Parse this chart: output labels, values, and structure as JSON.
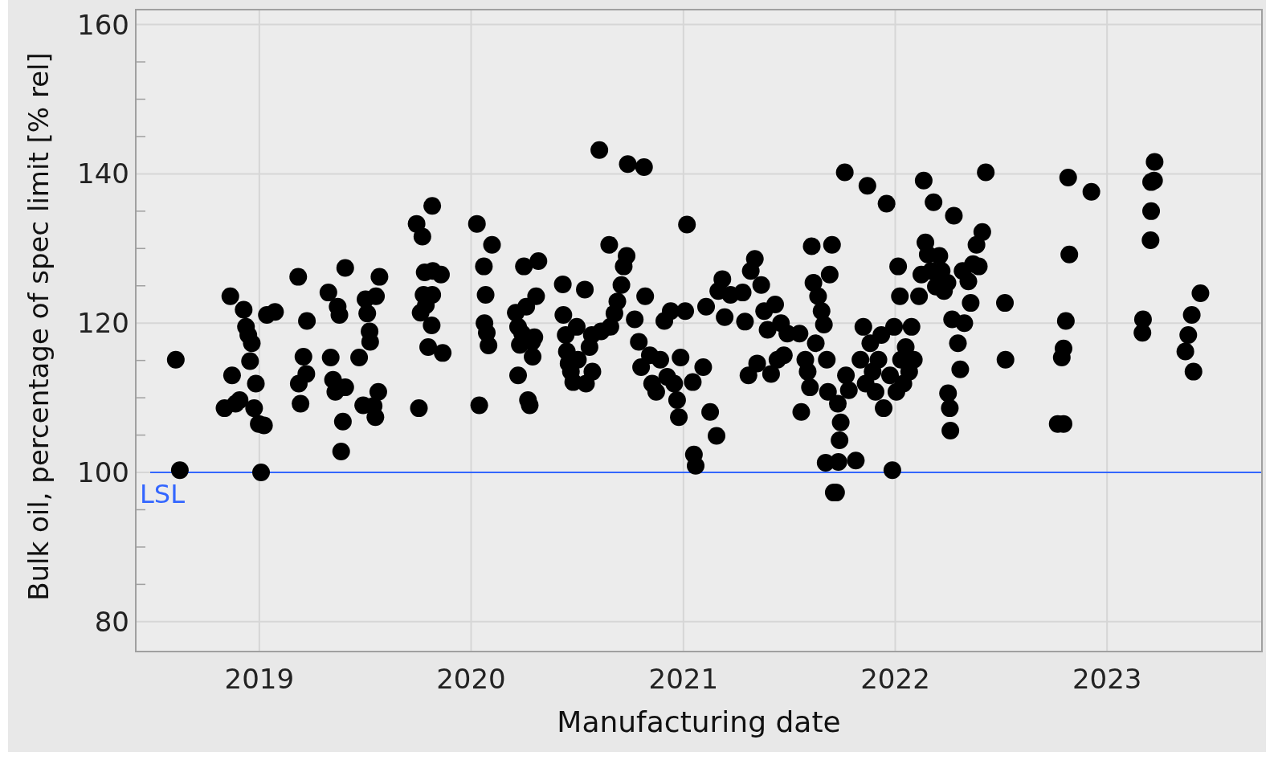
{
  "chart_data": {
    "type": "scatter",
    "xlabel": "Manufacturing date",
    "ylabel": "Bulk oil, percentage of spec limit [% rel]",
    "xlim": [
      "2018-06-02",
      "2023-09-25"
    ],
    "xticks": [
      "2019",
      "2020",
      "2021",
      "2022",
      "2023"
    ],
    "ylim": [
      76,
      162
    ],
    "yticks": [
      80,
      {
        "value": 85,
        "label": null
      },
      {
        "value": 90,
        "label": null
      },
      {
        "value": 95,
        "label": null
      },
      100,
      {
        "value": 105,
        "label": null
      },
      {
        "value": 110,
        "label": null
      },
      {
        "value": 115,
        "label": null
      },
      120,
      {
        "value": 125,
        "label": null
      },
      {
        "value": 130,
        "label": null
      },
      {
        "value": 135,
        "label": null
      },
      140,
      {
        "value": 145,
        "label": null
      },
      {
        "value": 150,
        "label": null
      },
      {
        "value": 155,
        "label": null
      },
      160
    ],
    "grid": true,
    "marker": "circle",
    "ref_lines": [
      {
        "axis": "y",
        "value": 100,
        "label": "LSL",
        "color": "#3366ff"
      }
    ],
    "series": [
      {
        "color": "#000000",
        "x": [
          "2018-08-10",
          "2018-08-17",
          "2018-11-02",
          "2018-11-12",
          "2018-11-15",
          "2018-11-21",
          "2018-11-28",
          "2018-12-05",
          "2018-12-09",
          "2018-12-13",
          "2018-12-19",
          "2018-12-16",
          "2018-12-26",
          "2018-12-23",
          "2018-12-31",
          "2019-01-09",
          "2019-01-04",
          "2019-01-14",
          "2019-01-28",
          "2019-03-09",
          "2019-03-10",
          "2019-03-13",
          "2019-03-18",
          "2019-03-23",
          "2019-03-24",
          "2019-04-30",
          "2019-05-04",
          "2019-05-08",
          "2019-05-12",
          "2019-05-16",
          "2019-05-19",
          "2019-05-22",
          "2019-05-25",
          "2019-05-29",
          "2019-05-29",
          "2019-06-22",
          "2019-06-29",
          "2019-07-03",
          "2019-07-06",
          "2019-07-10",
          "2019-07-11",
          "2019-07-17",
          "2019-07-20",
          "2019-07-21",
          "2019-07-25",
          "2019-07-27",
          "2019-09-29",
          "2019-10-03",
          "2019-10-06",
          "2019-10-09",
          "2019-10-11",
          "2019-10-13",
          "2019-10-15",
          "2019-10-19",
          "2019-10-25",
          "2019-10-26",
          "2019-10-27",
          "2019-10-26",
          "2019-11-10",
          "2019-11-13",
          "2020-01-11",
          "2020-01-15",
          "2020-01-23",
          "2020-01-26",
          "2020-01-24",
          "2020-01-28",
          "2020-01-31",
          "2020-02-06",
          "2020-03-18",
          "2020-03-22",
          "2020-03-25",
          "2020-03-22",
          "2020-03-29",
          "2020-04-01",
          "2020-04-05",
          "2020-04-08",
          "2020-04-11",
          "2020-04-15",
          "2020-04-16",
          "2020-04-19",
          "2020-04-22",
          "2020-04-26",
          "2020-06-07",
          "2020-06-08",
          "2020-06-12",
          "2020-06-14",
          "2020-06-17",
          "2020-06-21",
          "2020-06-25",
          "2020-07-01",
          "2020-07-03",
          "2020-07-15",
          "2020-07-17",
          "2020-07-23",
          "2020-07-27",
          "2020-07-28",
          "2020-08-09",
          "2020-08-12",
          "2020-08-26",
          "2020-08-28",
          "2020-09-04",
          "2020-09-09",
          "2020-09-16",
          "2020-09-20",
          "2020-09-25",
          "2020-09-27",
          "2020-10-09",
          "2020-10-16",
          "2020-10-20",
          "2020-10-25",
          "2020-10-27",
          "2020-11-04",
          "2020-11-08",
          "2020-11-15",
          "2020-11-22",
          "2020-11-29",
          "2020-12-04",
          "2020-12-10",
          "2020-12-16",
          "2020-12-21",
          "2020-12-24",
          "2020-12-27",
          "2021-01-04",
          "2021-01-07",
          "2021-01-17",
          "2021-01-19",
          "2021-01-22",
          "2021-02-04",
          "2021-02-09",
          "2021-02-16",
          "2021-02-27",
          "2021-03-02",
          "2021-03-09",
          "2021-03-13",
          "2021-03-23",
          "2021-04-13",
          "2021-04-17",
          "2021-04-23",
          "2021-04-27",
          "2021-05-04",
          "2021-05-08",
          "2021-05-15",
          "2021-05-20",
          "2021-05-26",
          "2021-06-01",
          "2021-06-08",
          "2021-06-12",
          "2021-06-18",
          "2021-06-23",
          "2021-06-29",
          "2021-07-20",
          "2021-07-23",
          "2021-07-30",
          "2021-08-03",
          "2021-08-07",
          "2021-08-10",
          "2021-08-13",
          "2021-08-17",
          "2021-08-21",
          "2021-08-27",
          "2021-08-31",
          "2021-09-03",
          "2021-09-05",
          "2021-09-07",
          "2021-09-10",
          "2021-09-14",
          "2021-09-17",
          "2021-09-21",
          "2021-09-24",
          "2021-09-27",
          "2021-09-25",
          "2021-09-29",
          "2021-10-06",
          "2021-10-08",
          "2021-10-13",
          "2021-10-25",
          "2021-11-02",
          "2021-11-07",
          "2021-11-11",
          "2021-11-14",
          "2021-11-19",
          "2021-11-23",
          "2021-11-28",
          "2021-12-03",
          "2021-12-08",
          "2021-12-12",
          "2021-12-17",
          "2021-12-23",
          "2021-12-27",
          "2021-12-30",
          "2022-01-03",
          "2022-01-06",
          "2022-01-09",
          "2022-01-11",
          "2022-01-15",
          "2022-01-19",
          "2022-01-25",
          "2022-01-29",
          "2022-02-02",
          "2022-02-11",
          "2022-02-15",
          "2022-02-19",
          "2022-02-22",
          "2022-02-26",
          "2022-03-04",
          "2022-03-08",
          "2022-03-12",
          "2022-03-18",
          "2022-03-22",
          "2022-03-26",
          "2022-04-01",
          "2022-04-02",
          "2022-04-05",
          "2022-04-06",
          "2022-04-09",
          "2022-04-12",
          "2022-04-19",
          "2022-04-23",
          "2022-04-27",
          "2022-04-30",
          "2022-05-07",
          "2022-05-11",
          "2022-05-15",
          "2022-05-21",
          "2022-05-25",
          "2022-05-31",
          "2022-06-06",
          "2022-07-09",
          "2022-07-10",
          "2022-10-08",
          "2022-10-18",
          "2022-10-15",
          "2022-10-18",
          "2022-10-22",
          "2022-10-26",
          "2022-10-28",
          "2022-12-05",
          "2023-03-03",
          "2023-03-04",
          "2023-03-17",
          "2023-03-18",
          "2023-03-18",
          "2023-03-24",
          "2023-03-23",
          "2023-05-16",
          "2023-05-21",
          "2023-05-27",
          "2023-05-30",
          "2023-06-11"
        ],
        "values": [
          115.1,
          100.3,
          108.6,
          123.6,
          113,
          109.2,
          109.7,
          121.8,
          119.5,
          118.4,
          117.3,
          114.9,
          111.9,
          108.6,
          106.5,
          106.3,
          100,
          121.1,
          121.5,
          126.2,
          111.9,
          109.2,
          115.5,
          113.2,
          120.3,
          124.1,
          115.4,
          112.4,
          110.8,
          122.2,
          121.1,
          102.8,
          106.8,
          127.4,
          111.4,
          115.4,
          109,
          123.2,
          121.3,
          118.9,
          117.5,
          108.9,
          107.4,
          123.6,
          110.8,
          126.2,
          133.3,
          108.6,
          121.4,
          131.6,
          123.8,
          126.8,
          122.4,
          116.8,
          119.7,
          135.7,
          127,
          123.8,
          126.5,
          116,
          133.3,
          109,
          127.6,
          123.8,
          120,
          118.7,
          117,
          130.5,
          121.4,
          119.5,
          117.1,
          113,
          118.6,
          127.6,
          122.2,
          109.7,
          109,
          117.5,
          115.5,
          118.1,
          123.6,
          128.3,
          125.2,
          121.1,
          118.4,
          116.2,
          114.6,
          113.5,
          112.1,
          119.5,
          115.1,
          124.5,
          111.9,
          116.8,
          118.4,
          113.5,
          143.2,
          118.9,
          130.5,
          119.5,
          121.3,
          122.9,
          125.1,
          127.6,
          129,
          141.3,
          120.5,
          117.5,
          114.1,
          140.9,
          123.6,
          115.7,
          111.9,
          110.8,
          115.1,
          120.3,
          112.8,
          121.6,
          111.9,
          109.7,
          107.4,
          115.4,
          121.6,
          133.2,
          112.1,
          102.4,
          100.9,
          114.1,
          122.2,
          108.1,
          104.9,
          124.3,
          125.9,
          120.8,
          123.8,
          124.1,
          120.2,
          113,
          127,
          128.6,
          114.6,
          125.1,
          121.6,
          119.1,
          113.2,
          122.5,
          115.1,
          120,
          115.7,
          118.6,
          118.6,
          108.1,
          115.1,
          113.5,
          111.4,
          130.3,
          125.4,
          117.3,
          123.6,
          121.6,
          119.8,
          101.3,
          115.1,
          110.8,
          126.5,
          130.5,
          97.3,
          97.3,
          109.2,
          104.3,
          101.4,
          106.7,
          140.2,
          113,
          111,
          101.6,
          115.1,
          119.5,
          111.9,
          138.4,
          117.3,
          113.5,
          110.8,
          115.1,
          118.4,
          108.6,
          136,
          113,
          100.3,
          119.5,
          110.8,
          127.6,
          123.6,
          115.1,
          111.9,
          116.8,
          113.5,
          119.5,
          115.1,
          123.6,
          126.5,
          139.1,
          130.8,
          129.2,
          127,
          136.2,
          124.9,
          129,
          127,
          124.3,
          125.4,
          110.6,
          108.6,
          105.6,
          120.5,
          134.4,
          117.3,
          113.8,
          127,
          120,
          125.6,
          122.7,
          127.9,
          130.5,
          127.6,
          132.2,
          140.2,
          122.7,
          115.1,
          106.5,
          106.5,
          115.4,
          116.6,
          120.3,
          139.5,
          129.2,
          137.6,
          118.7,
          120.5,
          131.1,
          135,
          138.9,
          141.6,
          139.1,
          116.2,
          118.4,
          121.1,
          113.5,
          124
        ]
      }
    ]
  }
}
